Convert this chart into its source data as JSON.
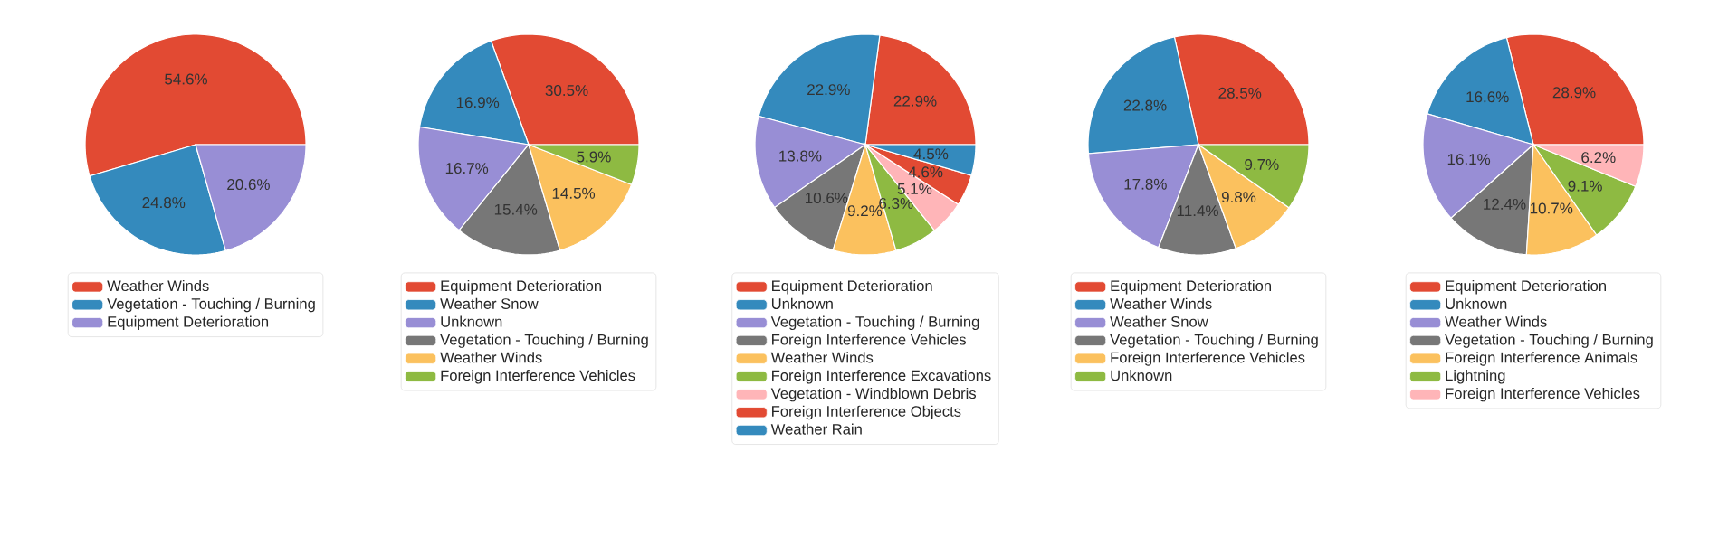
{
  "chart_data": [
    {
      "type": "pie",
      "legend": "bottom",
      "categories": [
        "Weather Winds",
        "Vegetation - Touching / Burning",
        "Equipment Deterioration"
      ],
      "values": [
        54.6,
        24.8,
        20.6
      ],
      "value_labels": [
        "54.6%",
        "24.8%",
        "20.6%"
      ],
      "colors": [
        "#e24a33",
        "#348abd",
        "#988ed5"
      ]
    },
    {
      "type": "pie",
      "legend": "bottom",
      "categories": [
        "Equipment Deterioration",
        "Weather Snow",
        "Unknown",
        "Vegetation - Touching / Burning",
        "Weather Winds",
        "Foreign Interference Vehicles"
      ],
      "values": [
        30.5,
        16.9,
        16.7,
        15.4,
        14.5,
        5.9
      ],
      "value_labels": [
        "30.5%",
        "16.9%",
        "16.7%",
        "15.4%",
        "14.5%",
        "5.9%"
      ],
      "colors": [
        "#e24a33",
        "#348abd",
        "#988ed5",
        "#777777",
        "#fbc15e",
        "#8eba42"
      ]
    },
    {
      "type": "pie",
      "legend": "bottom",
      "categories": [
        "Equipment Deterioration",
        "Unknown",
        "Vegetation - Touching / Burning",
        "Foreign Interference Vehicles",
        "Weather Winds",
        "Foreign Interference Excavations",
        "Vegetation - Windblown Debris",
        "Foreign Interference Objects",
        "Weather Rain"
      ],
      "values": [
        22.9,
        22.9,
        13.8,
        10.6,
        9.2,
        6.3,
        5.1,
        4.6,
        4.5
      ],
      "value_labels": [
        "22.9%",
        "22.9%",
        "13.8%",
        "10.6%",
        "9.2%",
        "6.3%",
        "5.1%",
        "4.6%",
        "4.5%"
      ],
      "colors": [
        "#e24a33",
        "#348abd",
        "#988ed5",
        "#777777",
        "#fbc15e",
        "#8eba42",
        "#ffb5b8",
        "#e24a33",
        "#348abd"
      ]
    },
    {
      "type": "pie",
      "legend": "bottom",
      "categories": [
        "Equipment Deterioration",
        "Weather Winds",
        "Weather Snow",
        "Vegetation - Touching / Burning",
        "Foreign Interference Vehicles",
        "Unknown"
      ],
      "values": [
        28.5,
        22.8,
        17.8,
        11.4,
        9.8,
        9.7
      ],
      "value_labels": [
        "28.5%",
        "22.8%",
        "17.8%",
        "11.4%",
        "9.8%",
        "9.7%"
      ],
      "colors": [
        "#e24a33",
        "#348abd",
        "#988ed5",
        "#777777",
        "#fbc15e",
        "#8eba42"
      ]
    },
    {
      "type": "pie",
      "legend": "bottom",
      "categories": [
        "Equipment Deterioration",
        "Unknown",
        "Weather Winds",
        "Vegetation - Touching / Burning",
        "Foreign Interference Animals",
        "Lightning",
        "Foreign Interference Vehicles"
      ],
      "values": [
        28.9,
        16.6,
        16.1,
        12.4,
        10.7,
        9.1,
        6.2
      ],
      "value_labels": [
        "28.9%",
        "16.6%",
        "16.1%",
        "12.4%",
        "10.7%",
        "9.1%",
        "6.2%"
      ],
      "colors": [
        "#e24a33",
        "#348abd",
        "#988ed5",
        "#777777",
        "#fbc15e",
        "#8eba42",
        "#ffb5b8"
      ]
    }
  ]
}
